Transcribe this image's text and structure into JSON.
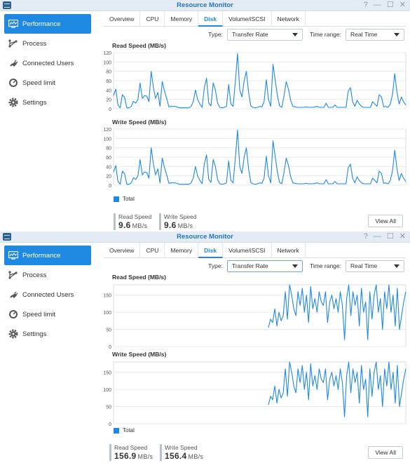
{
  "window_title": "Resource Monitor",
  "titlebar_controls": [
    "?",
    "—",
    "☐",
    "✕"
  ],
  "sidebar": {
    "items": [
      {
        "label": "Performance",
        "icon": "monitor-icon",
        "active": true
      },
      {
        "label": "Process",
        "icon": "process-icon",
        "active": false
      },
      {
        "label": "Connected Users",
        "icon": "plug-icon",
        "active": false
      },
      {
        "label": "Speed limit",
        "icon": "speedometer-icon",
        "active": false
      },
      {
        "label": "Settings",
        "icon": "gear-icon",
        "active": false
      }
    ]
  },
  "tabs": [
    "Overview",
    "CPU",
    "Memory",
    "Disk",
    "Volume/iSCSI",
    "Network"
  ],
  "active_tab": "Disk",
  "filters": {
    "type_label": "Type:",
    "type_value": "Transfer Rate",
    "time_range_label": "Time range:",
    "time_range_value": "Real Time"
  },
  "legend_label": "Total",
  "accent_color": "#1f88e0",
  "stat_labels": {
    "read": "Read Speed",
    "write": "Write Speed",
    "unit": "MB/s"
  },
  "view_all_label": "View All",
  "panels": [
    {
      "read": {
        "value": "9.6"
      },
      "write": {
        "value": "9.6"
      }
    },
    {
      "read": {
        "value": "156.9"
      },
      "write": {
        "value": "156.4"
      }
    }
  ],
  "chart_data": [
    {
      "type": "line",
      "title": "Read Speed (MB/s)",
      "ylim": [
        0,
        120
      ],
      "yticks": [
        0,
        20,
        40,
        60,
        80,
        100,
        120
      ],
      "series": [
        {
          "values": [
            28,
            42,
            8,
            2,
            30,
            24,
            2,
            2,
            5,
            16,
            12,
            20,
            55,
            22,
            28,
            27,
            15,
            80,
            45,
            22,
            35,
            5,
            58,
            38,
            22,
            4,
            5,
            5,
            5,
            3,
            2,
            2,
            2,
            2,
            2,
            5,
            15,
            40,
            20,
            10,
            3,
            45,
            65,
            12,
            6,
            55,
            40,
            12,
            3,
            2,
            3,
            5,
            52,
            10,
            5,
            58,
            118,
            40,
            25,
            60,
            80,
            35,
            6,
            3,
            2,
            3,
            5,
            4,
            15,
            62,
            20,
            5,
            95,
            62,
            28,
            6,
            3,
            28,
            58,
            42,
            18,
            5,
            4,
            3,
            3,
            3,
            3,
            4,
            3,
            3,
            3,
            4,
            5,
            3,
            3,
            3,
            12,
            3,
            3,
            3,
            8,
            3,
            3,
            3,
            3,
            3,
            38,
            45,
            15,
            5,
            18,
            10,
            5,
            3,
            3,
            3,
            3,
            15,
            10,
            5,
            30,
            25,
            4,
            5,
            3,
            10,
            30,
            75,
            35,
            10,
            25,
            15,
            8
          ]
        }
      ]
    },
    {
      "type": "line",
      "title": "Write Speed (MB/s)",
      "ylim": [
        0,
        120
      ],
      "yticks": [
        0,
        20,
        40,
        60,
        80,
        100,
        120
      ],
      "series": [
        {
          "values": [
            28,
            42,
            8,
            2,
            30,
            24,
            2,
            2,
            5,
            16,
            12,
            20,
            55,
            22,
            28,
            27,
            15,
            80,
            45,
            22,
            35,
            5,
            58,
            38,
            22,
            4,
            5,
            5,
            5,
            3,
            2,
            2,
            2,
            2,
            2,
            5,
            15,
            40,
            20,
            10,
            3,
            45,
            65,
            12,
            6,
            55,
            40,
            12,
            3,
            2,
            3,
            5,
            52,
            10,
            5,
            58,
            118,
            40,
            25,
            60,
            80,
            35,
            6,
            3,
            2,
            3,
            5,
            4,
            15,
            62,
            20,
            5,
            95,
            62,
            28,
            6,
            3,
            28,
            58,
            42,
            18,
            5,
            4,
            3,
            3,
            3,
            3,
            4,
            3,
            3,
            3,
            4,
            5,
            3,
            3,
            3,
            12,
            3,
            3,
            3,
            8,
            3,
            3,
            3,
            3,
            3,
            38,
            45,
            15,
            5,
            18,
            10,
            5,
            3,
            3,
            3,
            3,
            15,
            10,
            5,
            30,
            25,
            4,
            5,
            3,
            10,
            30,
            75,
            35,
            10,
            25,
            15,
            8
          ]
        }
      ]
    },
    {
      "type": "line",
      "title": "Read Speed (MB/s)",
      "ylim": [
        0,
        180
      ],
      "yticks": [
        0,
        50,
        100,
        150
      ],
      "x_start_fraction": 0.53,
      "series": [
        {
          "values": [
            55,
            80,
            70,
            110,
            60,
            100,
            75,
            90,
            160,
            80,
            180,
            150,
            110,
            90,
            160,
            120,
            170,
            100,
            150,
            70,
            175,
            110,
            140,
            100,
            160,
            130,
            120,
            160,
            70,
            130,
            150,
            110,
            140,
            100,
            160,
            120,
            20,
            140,
            180,
            90,
            160,
            120,
            150,
            60,
            170,
            100,
            130,
            20,
            160,
            80,
            150,
            180,
            100,
            140,
            50,
            160,
            110,
            180,
            100,
            150,
            60,
            170,
            50,
            90,
            130,
            160
          ]
        }
      ]
    },
    {
      "type": "line",
      "title": "Write Speed (MB/s)",
      "ylim": [
        0,
        180
      ],
      "yticks": [
        0,
        50,
        100,
        150
      ],
      "x_start_fraction": 0.53,
      "series": [
        {
          "values": [
            55,
            80,
            70,
            110,
            60,
            100,
            75,
            90,
            160,
            80,
            180,
            150,
            110,
            90,
            160,
            120,
            170,
            100,
            150,
            70,
            175,
            110,
            140,
            100,
            160,
            130,
            120,
            160,
            70,
            130,
            150,
            110,
            140,
            100,
            160,
            120,
            20,
            140,
            180,
            90,
            160,
            120,
            150,
            60,
            170,
            100,
            130,
            20,
            160,
            80,
            150,
            180,
            100,
            140,
            50,
            160,
            110,
            180,
            100,
            150,
            60,
            170,
            50,
            90,
            130,
            160
          ]
        }
      ]
    }
  ]
}
